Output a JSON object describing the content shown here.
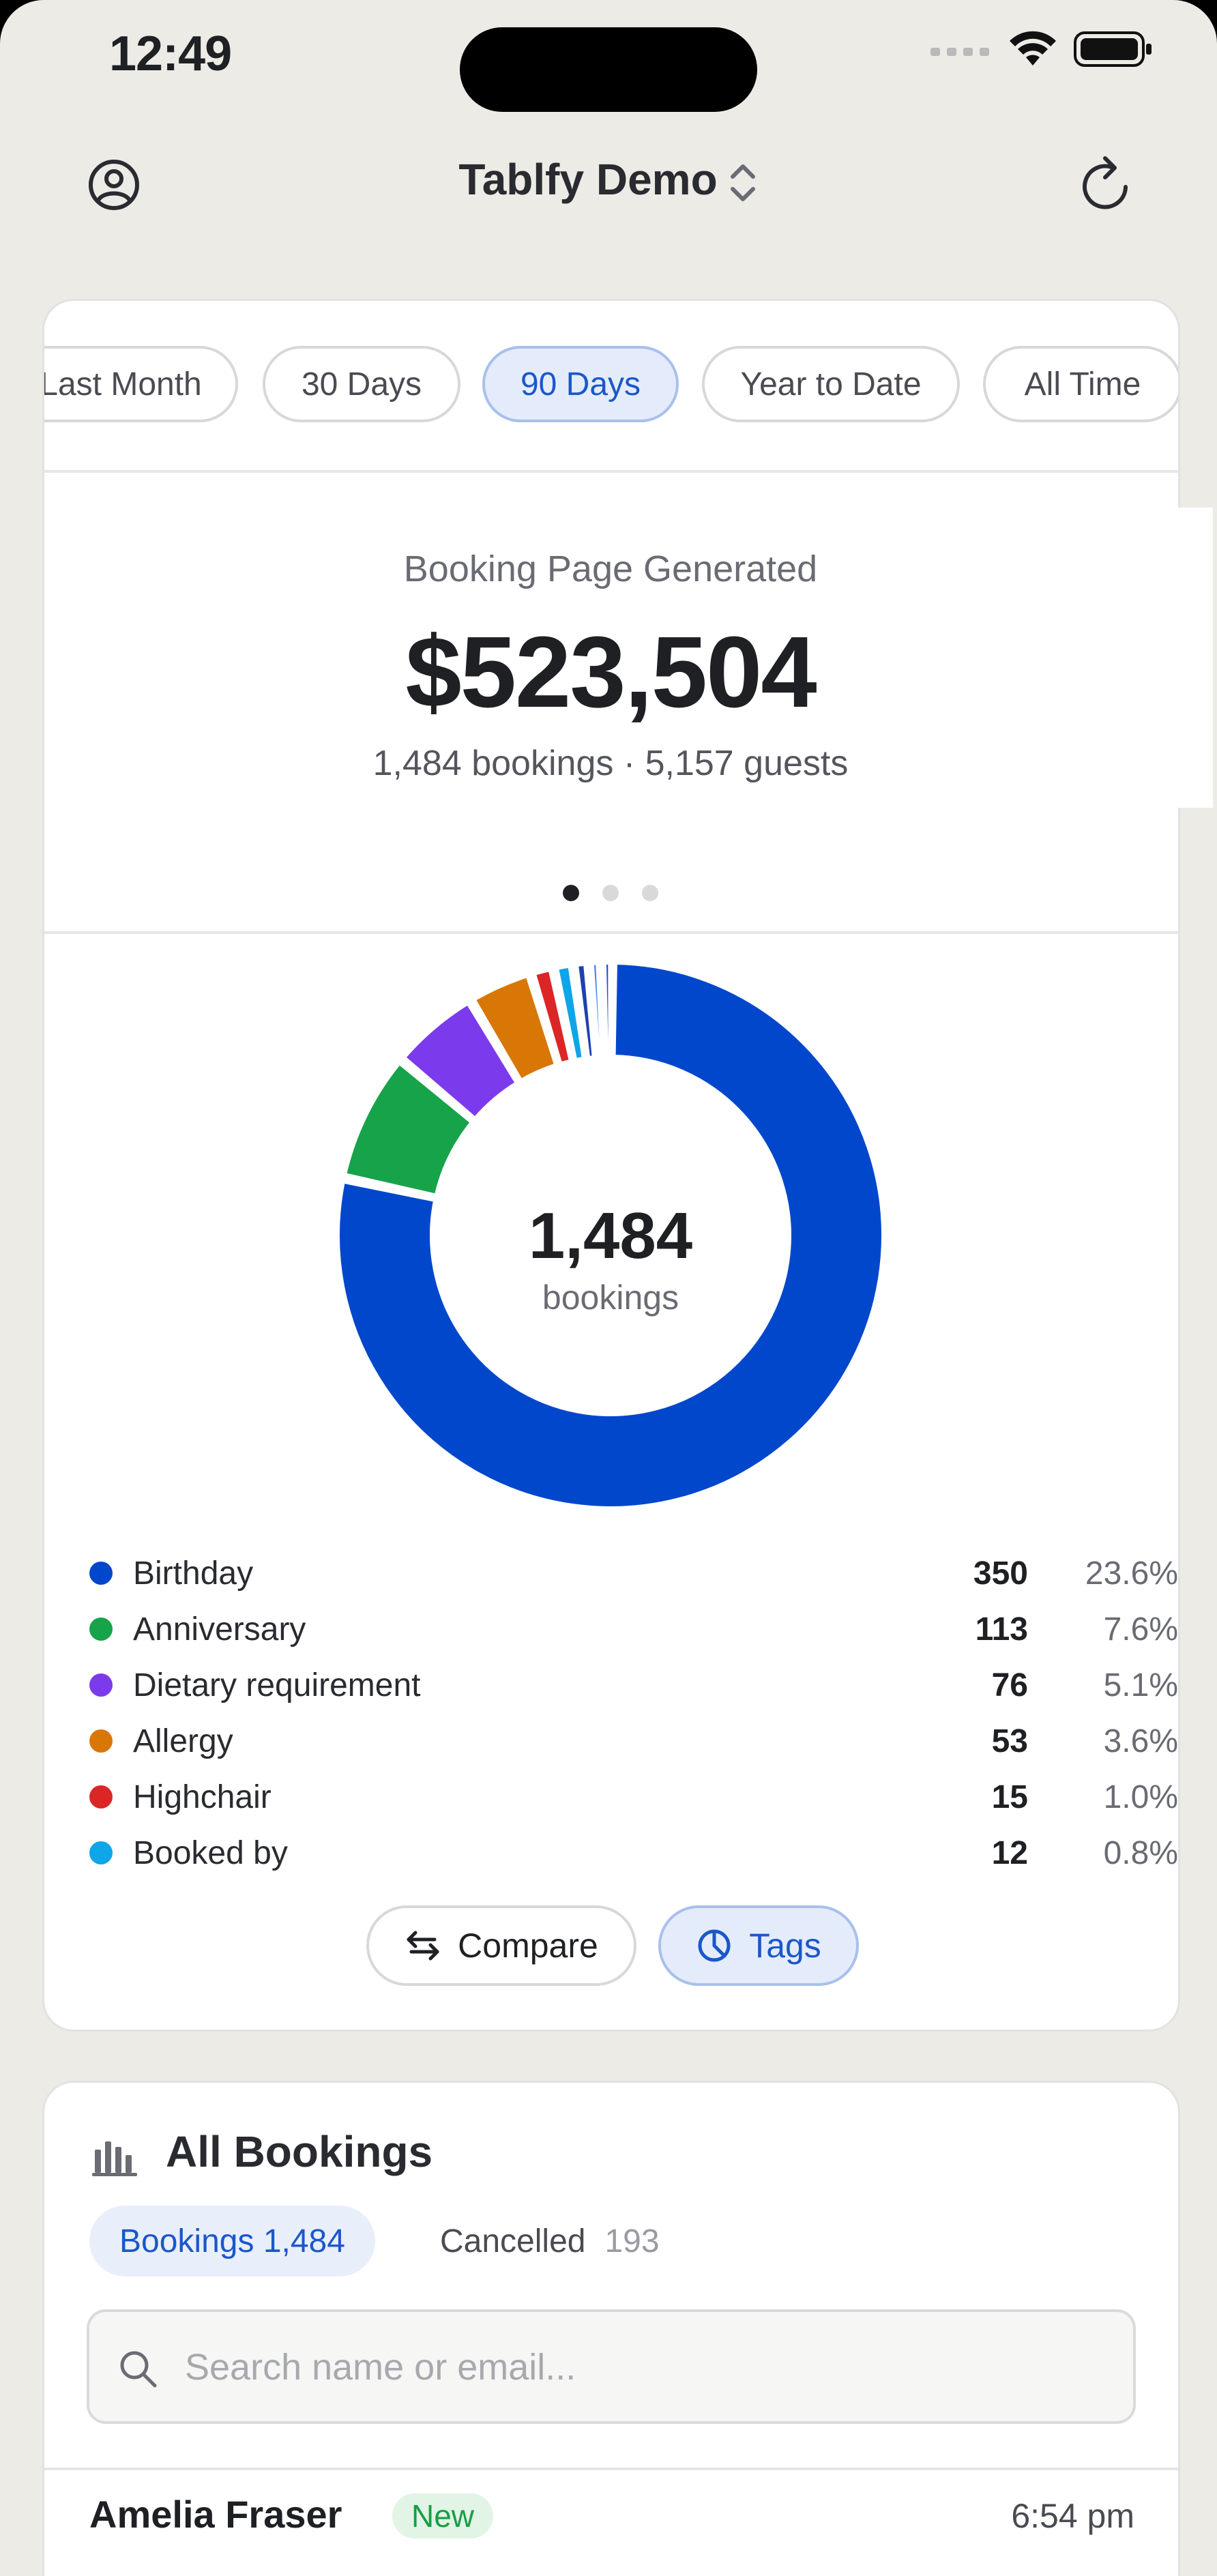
{
  "status_bar": {
    "time": "12:49"
  },
  "nav": {
    "title": "Tablfy Demo"
  },
  "range_filters": [
    {
      "label": "Last Month",
      "active": false
    },
    {
      "label": "30 Days",
      "active": false
    },
    {
      "label": "90 Days",
      "active": true
    },
    {
      "label": "Year to Date",
      "active": false
    },
    {
      "label": "All Time",
      "active": false
    }
  ],
  "summary": {
    "label": "Booking Page Generated",
    "value": "$523,504",
    "sub": "1,484 bookings · 5,157 guests",
    "page_count": 3,
    "current_page": 1
  },
  "donut": {
    "center_value": "1,484",
    "center_label": "bookings"
  },
  "chart_data": {
    "type": "pie",
    "total": 1484,
    "series": [
      {
        "label": "Birthday",
        "value": 350,
        "pct": "23.6%",
        "color": "#0047cc"
      },
      {
        "label": "Anniversary",
        "value": 113,
        "pct": "7.6%",
        "color": "#16a34a"
      },
      {
        "label": "Dietary requirement",
        "value": 76,
        "pct": "5.1%",
        "color": "#7c3aed"
      },
      {
        "label": "Allergy",
        "value": 53,
        "pct": "3.6%",
        "color": "#d97706"
      },
      {
        "label": "Highchair",
        "value": 15,
        "pct": "1.0%",
        "color": "#dc2626"
      },
      {
        "label": "Booked by",
        "value": 12,
        "pct": "0.8%",
        "color": "#0ea5e9"
      }
    ],
    "extra_slivers": [
      {
        "value": 8,
        "color": "#1e40af"
      },
      {
        "value": 5,
        "color": "#3b82f6"
      },
      {
        "value": 4,
        "color": "#1d4ed8"
      }
    ]
  },
  "actions": {
    "compare_label": "Compare",
    "tags_label": "Tags"
  },
  "bookings": {
    "title": "All Bookings",
    "tab_bookings": "Bookings",
    "tab_bookings_count": "1,484",
    "tab_cancelled": "Cancelled",
    "tab_cancelled_count": "193",
    "search_placeholder": "Search name or email...",
    "first_row": {
      "name": "Amelia Fraser",
      "badge": "New",
      "time": "6:54 pm"
    }
  }
}
